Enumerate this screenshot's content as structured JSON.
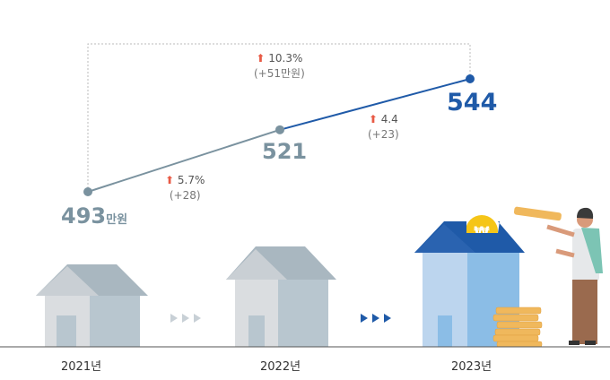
{
  "chart_data": {
    "type": "line",
    "categories": [
      "2021년",
      "2022년",
      "2023년"
    ],
    "values": [
      493,
      521,
      544
    ],
    "unit": "만원",
    "value_labels": [
      "493",
      "521",
      "544"
    ],
    "annotations": [
      {
        "pct": "5.7%",
        "diff": "(+28)"
      },
      {
        "pct": "4.4",
        "diff": "(+23)"
      },
      {
        "pct": "10.3%",
        "diff": "(+51만원)"
      }
    ],
    "ylim": [
      493,
      544
    ],
    "colors": {
      "past": "#7a929f",
      "current": "#1f5aa8",
      "arrow": "#e85a45"
    }
  }
}
